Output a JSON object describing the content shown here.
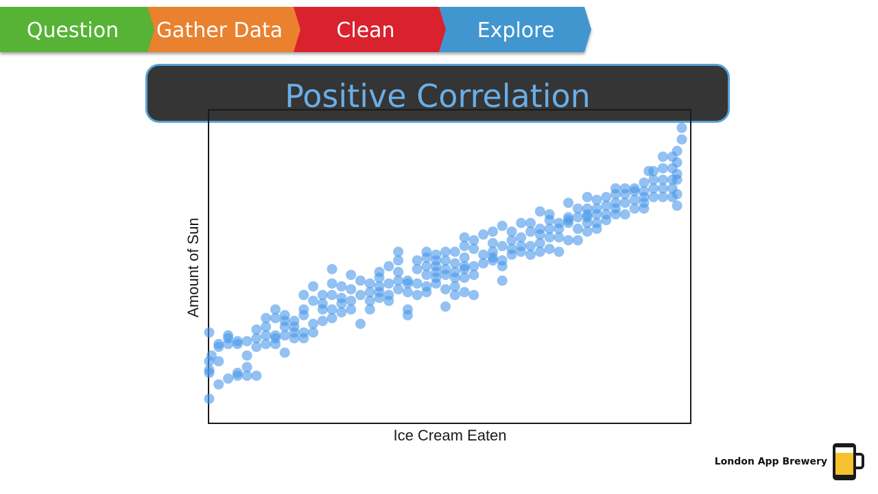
{
  "steps": [
    {
      "label": "Question",
      "color": "#57b335"
    },
    {
      "label": "Gather Data",
      "color": "#e9812f"
    },
    {
      "label": "Clean",
      "color": "#d9242d"
    },
    {
      "label": "Explore",
      "color": "#4296cf"
    }
  ],
  "slide": {
    "title": "Positive Correlation"
  },
  "brand": {
    "name": "London App Brewery",
    "icon": "beer-phone-logo"
  },
  "chart_data": {
    "type": "scatter",
    "title": "",
    "xlabel": "Ice Cream Eaten",
    "ylabel": "Amount of Sun",
    "xlim": [
      0,
      100
    ],
    "ylim": [
      0,
      100
    ],
    "ticks": false,
    "grid": false,
    "point_color": "#4a97ea",
    "points": [
      [
        0,
        4
      ],
      [
        0,
        13
      ],
      [
        0,
        14
      ],
      [
        0,
        17
      ],
      [
        0,
        27
      ],
      [
        0.5,
        19
      ],
      [
        2,
        9
      ],
      [
        2,
        17
      ],
      [
        2,
        23
      ],
      [
        2,
        22
      ],
      [
        4,
        11
      ],
      [
        4,
        23
      ],
      [
        4,
        25
      ],
      [
        4,
        26
      ],
      [
        6,
        12
      ],
      [
        6,
        13
      ],
      [
        6,
        23
      ],
      [
        6,
        24
      ],
      [
        8,
        15
      ],
      [
        8,
        12
      ],
      [
        8,
        24
      ],
      [
        8,
        19
      ],
      [
        10,
        12
      ],
      [
        10,
        25
      ],
      [
        10,
        22
      ],
      [
        10,
        28
      ],
      [
        12,
        23
      ],
      [
        12,
        26
      ],
      [
        12,
        32
      ],
      [
        12,
        29
      ],
      [
        14,
        23
      ],
      [
        14,
        25
      ],
      [
        14,
        26
      ],
      [
        14,
        32
      ],
      [
        14,
        35
      ],
      [
        16,
        29
      ],
      [
        16,
        33
      ],
      [
        16,
        31
      ],
      [
        16,
        26
      ],
      [
        16,
        20
      ],
      [
        18,
        25
      ],
      [
        18,
        27
      ],
      [
        18,
        29
      ],
      [
        18,
        31
      ],
      [
        20,
        25
      ],
      [
        20,
        27
      ],
      [
        20,
        33
      ],
      [
        20,
        35
      ],
      [
        20,
        40
      ],
      [
        22,
        27
      ],
      [
        22,
        30
      ],
      [
        22,
        38
      ],
      [
        22,
        43
      ],
      [
        24,
        31
      ],
      [
        24,
        35
      ],
      [
        24,
        37
      ],
      [
        24,
        40
      ],
      [
        26,
        32
      ],
      [
        26,
        35
      ],
      [
        26,
        40
      ],
      [
        26,
        44
      ],
      [
        26,
        49
      ],
      [
        28,
        34
      ],
      [
        28,
        37
      ],
      [
        28,
        39
      ],
      [
        28,
        43
      ],
      [
        30,
        35
      ],
      [
        30,
        38
      ],
      [
        30,
        42
      ],
      [
        30,
        47
      ],
      [
        32,
        30
      ],
      [
        32,
        40
      ],
      [
        32,
        45
      ],
      [
        34,
        35
      ],
      [
        34,
        38
      ],
      [
        34,
        41
      ],
      [
        34,
        44
      ],
      [
        36,
        39
      ],
      [
        36,
        41
      ],
      [
        36,
        43
      ],
      [
        36,
        46
      ],
      [
        36,
        48
      ],
      [
        38,
        38
      ],
      [
        38,
        40
      ],
      [
        38,
        44
      ],
      [
        38,
        50
      ],
      [
        40,
        42
      ],
      [
        40,
        45
      ],
      [
        40,
        48
      ],
      [
        40,
        52
      ],
      [
        40,
        55
      ],
      [
        42,
        33
      ],
      [
        42,
        35
      ],
      [
        42,
        41
      ],
      [
        42,
        44
      ],
      [
        42,
        45
      ],
      [
        44,
        40
      ],
      [
        44,
        44
      ],
      [
        44,
        49
      ],
      [
        44,
        52
      ],
      [
        46,
        41
      ],
      [
        46,
        43
      ],
      [
        46,
        47
      ],
      [
        46,
        50
      ],
      [
        46,
        53
      ],
      [
        46,
        55
      ],
      [
        48,
        44
      ],
      [
        48,
        46
      ],
      [
        48,
        48
      ],
      [
        48,
        50
      ],
      [
        48,
        52
      ],
      [
        48,
        54
      ],
      [
        50,
        36
      ],
      [
        50,
        42
      ],
      [
        50,
        47
      ],
      [
        50,
        49
      ],
      [
        50,
        52
      ],
      [
        50,
        55
      ],
      [
        52,
        40
      ],
      [
        52,
        43
      ],
      [
        52,
        46
      ],
      [
        52,
        48
      ],
      [
        52,
        51
      ],
      [
        52,
        55
      ],
      [
        54,
        41
      ],
      [
        54,
        46
      ],
      [
        54,
        49
      ],
      [
        54,
        50
      ],
      [
        54,
        53
      ],
      [
        54,
        57
      ],
      [
        54,
        60
      ],
      [
        56,
        40
      ],
      [
        56,
        47
      ],
      [
        56,
        50
      ],
      [
        56,
        56
      ],
      [
        56,
        59
      ],
      [
        58,
        51
      ],
      [
        58,
        54
      ],
      [
        58,
        61
      ],
      [
        60,
        52
      ],
      [
        60,
        53
      ],
      [
        60,
        55
      ],
      [
        60,
        58
      ],
      [
        60,
        62
      ],
      [
        62,
        45
      ],
      [
        62,
        50
      ],
      [
        62,
        52
      ],
      [
        62,
        57
      ],
      [
        62,
        64
      ],
      [
        64,
        54
      ],
      [
        64,
        56
      ],
      [
        64,
        59
      ],
      [
        64,
        62
      ],
      [
        66,
        55
      ],
      [
        66,
        57
      ],
      [
        66,
        60
      ],
      [
        66,
        65
      ],
      [
        68,
        54
      ],
      [
        68,
        57
      ],
      [
        68,
        62
      ],
      [
        68,
        65
      ],
      [
        70,
        55
      ],
      [
        70,
        58
      ],
      [
        70,
        61
      ],
      [
        70,
        63
      ],
      [
        70,
        69
      ],
      [
        72,
        56
      ],
      [
        72,
        60
      ],
      [
        72,
        63
      ],
      [
        72,
        66
      ],
      [
        72,
        68
      ],
      [
        74,
        55
      ],
      [
        74,
        60
      ],
      [
        74,
        63
      ],
      [
        74,
        65
      ],
      [
        76,
        59
      ],
      [
        76,
        65
      ],
      [
        76,
        66
      ],
      [
        76,
        67
      ],
      [
        76,
        72
      ],
      [
        78,
        59
      ],
      [
        78,
        63
      ],
      [
        78,
        67
      ],
      [
        78,
        70
      ],
      [
        80,
        62
      ],
      [
        80,
        65
      ],
      [
        80,
        67
      ],
      [
        80,
        68
      ],
      [
        80,
        70
      ],
      [
        80,
        74
      ],
      [
        82,
        63
      ],
      [
        82,
        65
      ],
      [
        82,
        68
      ],
      [
        82,
        70
      ],
      [
        82,
        73
      ],
      [
        84,
        66
      ],
      [
        84,
        68
      ],
      [
        84,
        71
      ],
      [
        84,
        74
      ],
      [
        86,
        68
      ],
      [
        86,
        70
      ],
      [
        86,
        72
      ],
      [
        86,
        75
      ],
      [
        86,
        77
      ],
      [
        88,
        68
      ],
      [
        88,
        72
      ],
      [
        88,
        75
      ],
      [
        88,
        77
      ],
      [
        90,
        70
      ],
      [
        90,
        73
      ],
      [
        90,
        76
      ],
      [
        90,
        77
      ],
      [
        92,
        70
      ],
      [
        92,
        72
      ],
      [
        92,
        74
      ],
      [
        92,
        76
      ],
      [
        92,
        79
      ],
      [
        93,
        83
      ],
      [
        94,
        74
      ],
      [
        94,
        77
      ],
      [
        94,
        80
      ],
      [
        94,
        83
      ],
      [
        96,
        74
      ],
      [
        96,
        77
      ],
      [
        96,
        80
      ],
      [
        96,
        84
      ],
      [
        96,
        88
      ],
      [
        98,
        74
      ],
      [
        98,
        77
      ],
      [
        98,
        80
      ],
      [
        98,
        84
      ],
      [
        98,
        88
      ],
      [
        99,
        90
      ],
      [
        99,
        86
      ],
      [
        99,
        82
      ],
      [
        99,
        80
      ],
      [
        99,
        75
      ],
      [
        99,
        71
      ],
      [
        100,
        98
      ],
      [
        100,
        94
      ]
    ]
  }
}
